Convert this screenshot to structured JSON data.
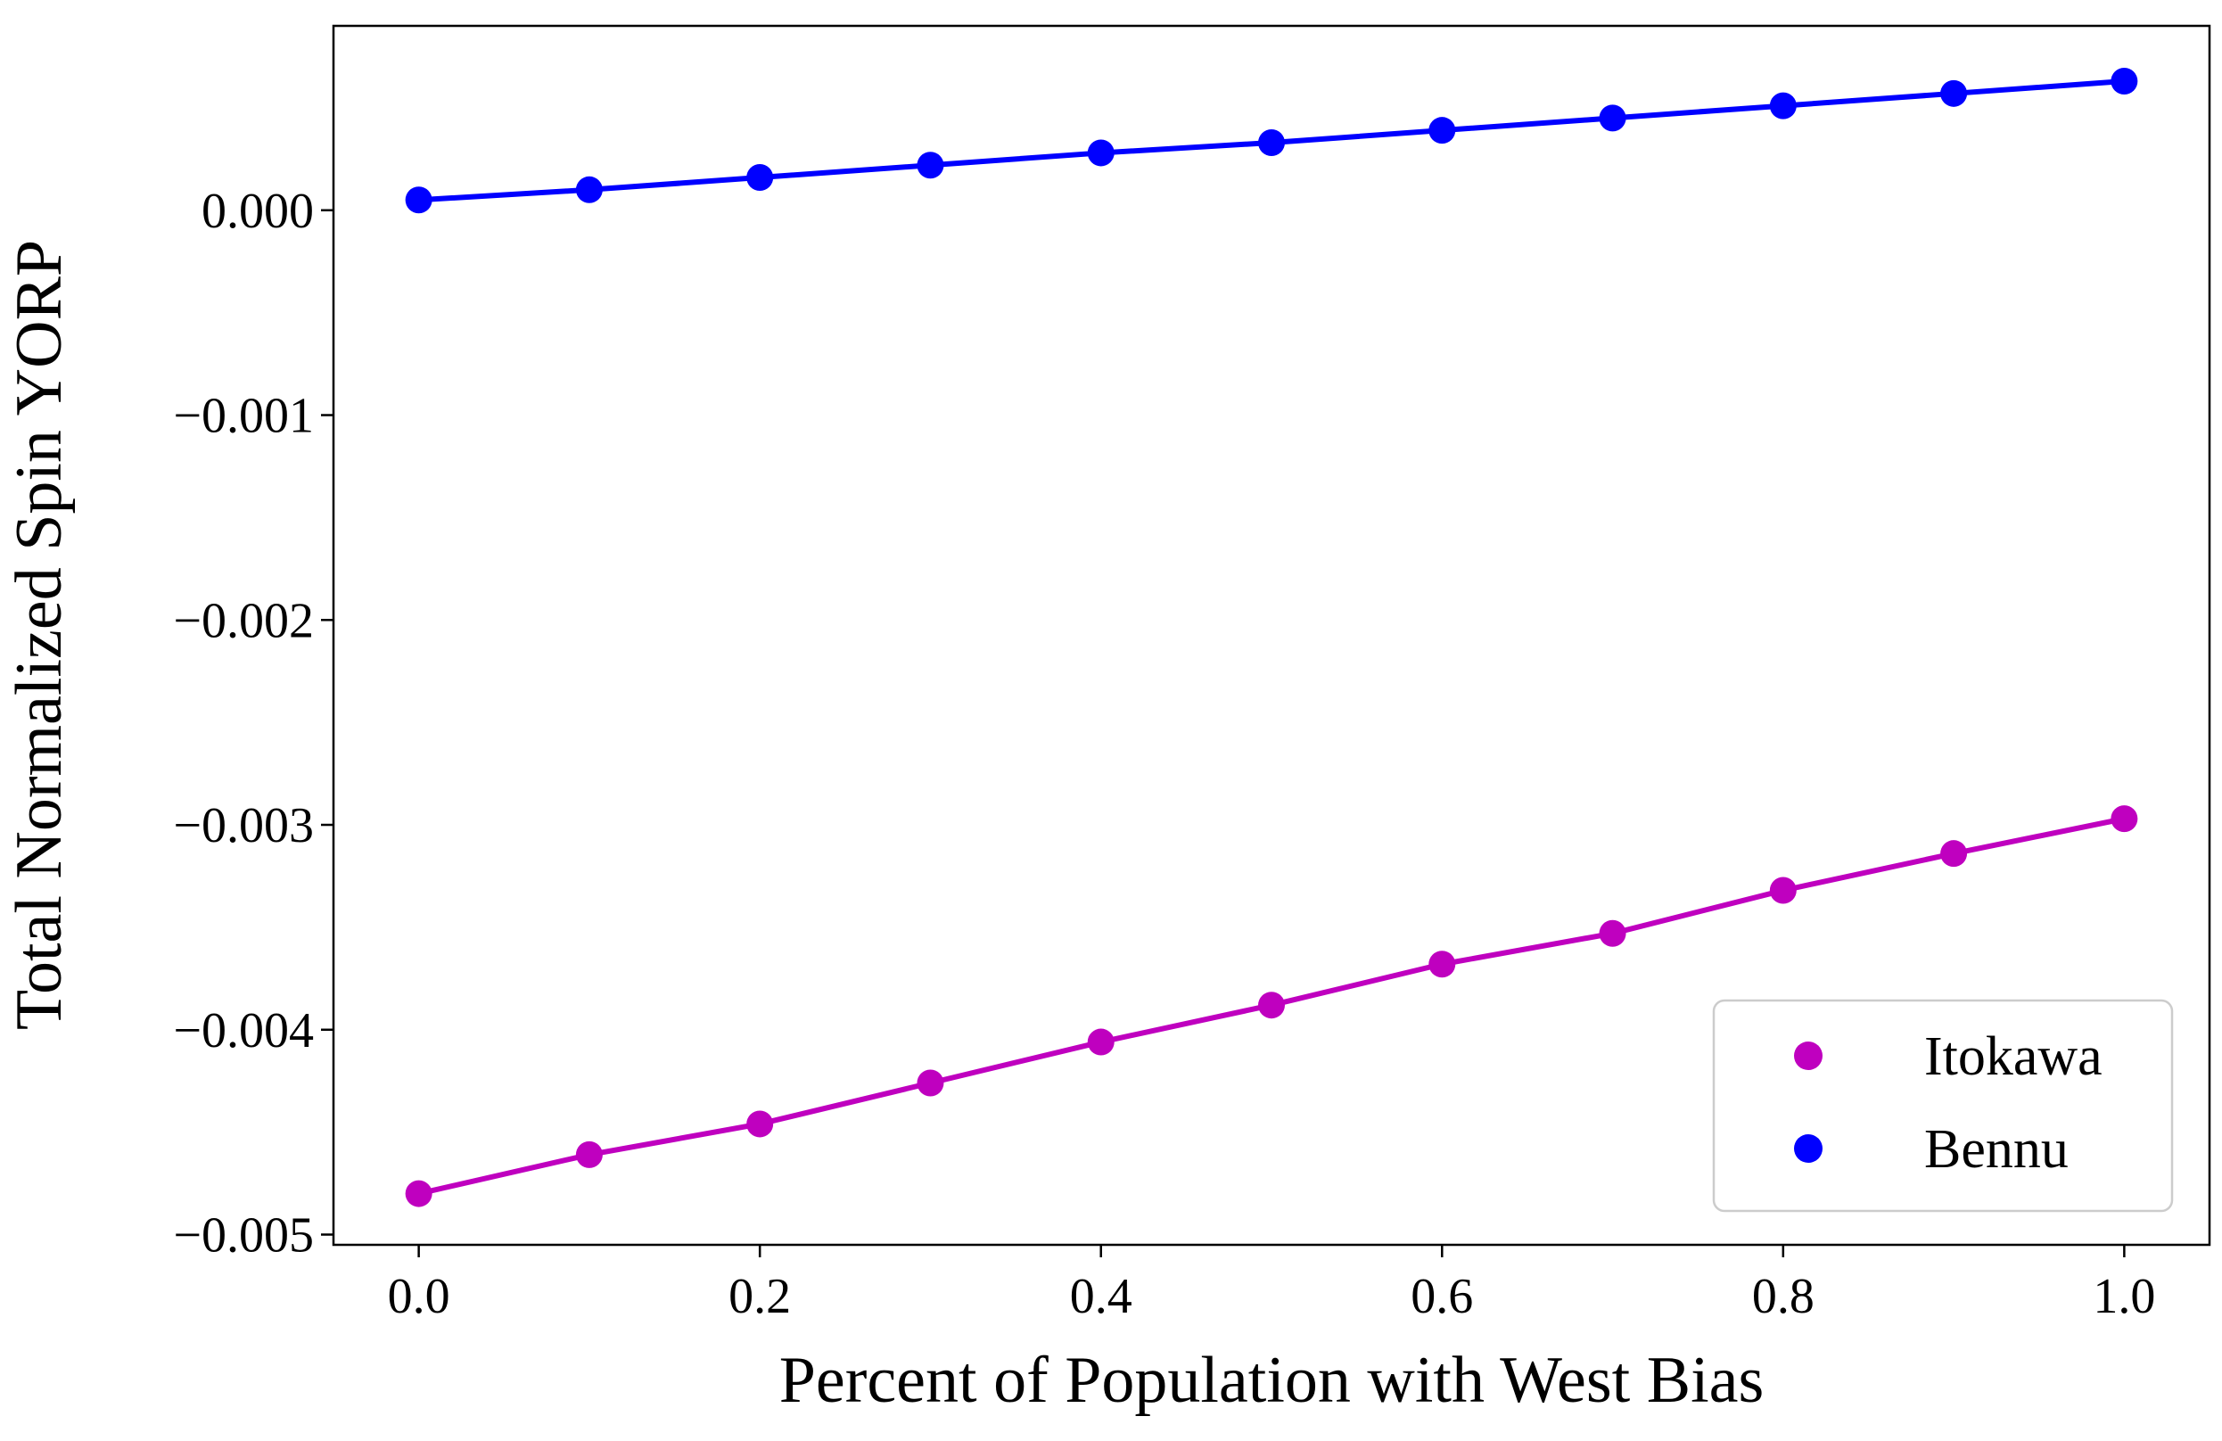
{
  "chart_data": {
    "type": "line",
    "xlabel": "Percent of Population with West Bias",
    "ylabel": "Total Normalized Spin YORP",
    "xlim": [
      -0.05,
      1.05
    ],
    "ylim": [
      -0.00505,
      0.0009
    ],
    "x_ticks": [
      0.0,
      0.2,
      0.4,
      0.6,
      0.8,
      1.0
    ],
    "x_tick_labels": [
      "0.0",
      "0.2",
      "0.4",
      "0.6",
      "0.8",
      "1.0"
    ],
    "y_ticks": [
      0.0,
      -0.001,
      -0.002,
      -0.003,
      -0.004,
      -0.005
    ],
    "y_tick_labels": [
      "0.000",
      "−0.001",
      "−0.002",
      "−0.003",
      "−0.004",
      "−0.005"
    ],
    "grid": false,
    "legend_position": "lower-right",
    "x": [
      0.0,
      0.1,
      0.2,
      0.3,
      0.4,
      0.5,
      0.6,
      0.7,
      0.8,
      0.9,
      1.0
    ],
    "series": [
      {
        "name": "Itokawa",
        "color": "#bf00bf",
        "values": [
          -0.0048,
          -0.00461,
          -0.00446,
          -0.00426,
          -0.00406,
          -0.00388,
          -0.00368,
          -0.00353,
          -0.00332,
          -0.00314,
          -0.00297
        ]
      },
      {
        "name": "Bennu",
        "color": "#0000ff",
        "values": [
          5e-05,
          0.0001,
          0.00016,
          0.00022,
          0.00028,
          0.00033,
          0.00039,
          0.00045,
          0.00051,
          0.00057,
          0.00063
        ]
      }
    ]
  }
}
